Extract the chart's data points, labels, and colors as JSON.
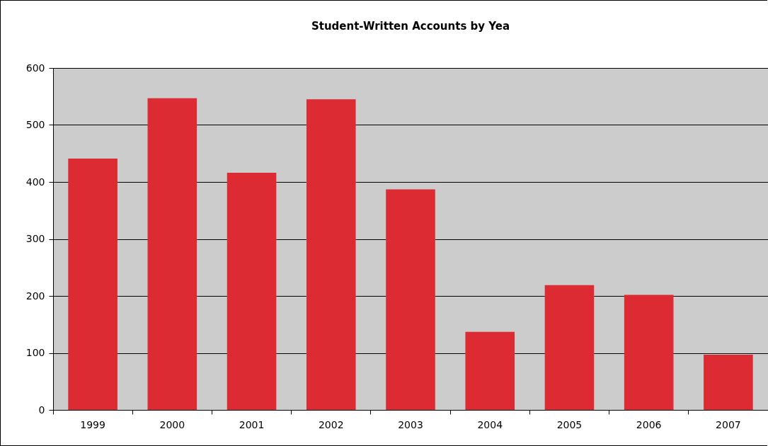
{
  "chart_data": {
    "type": "bar",
    "title": "Student-Written Accounts by Yea",
    "categories": [
      "1999",
      "2000",
      "2001",
      "2002",
      "2003",
      "2004",
      "2005",
      "2006",
      "2007"
    ],
    "values": [
      441,
      547,
      416,
      545,
      387,
      137,
      219,
      202,
      97
    ],
    "color": "#dc2b33",
    "ylim": [
      0,
      600
    ],
    "yticks": [
      0,
      100,
      200,
      300,
      400,
      500,
      600
    ],
    "grid": "y"
  }
}
